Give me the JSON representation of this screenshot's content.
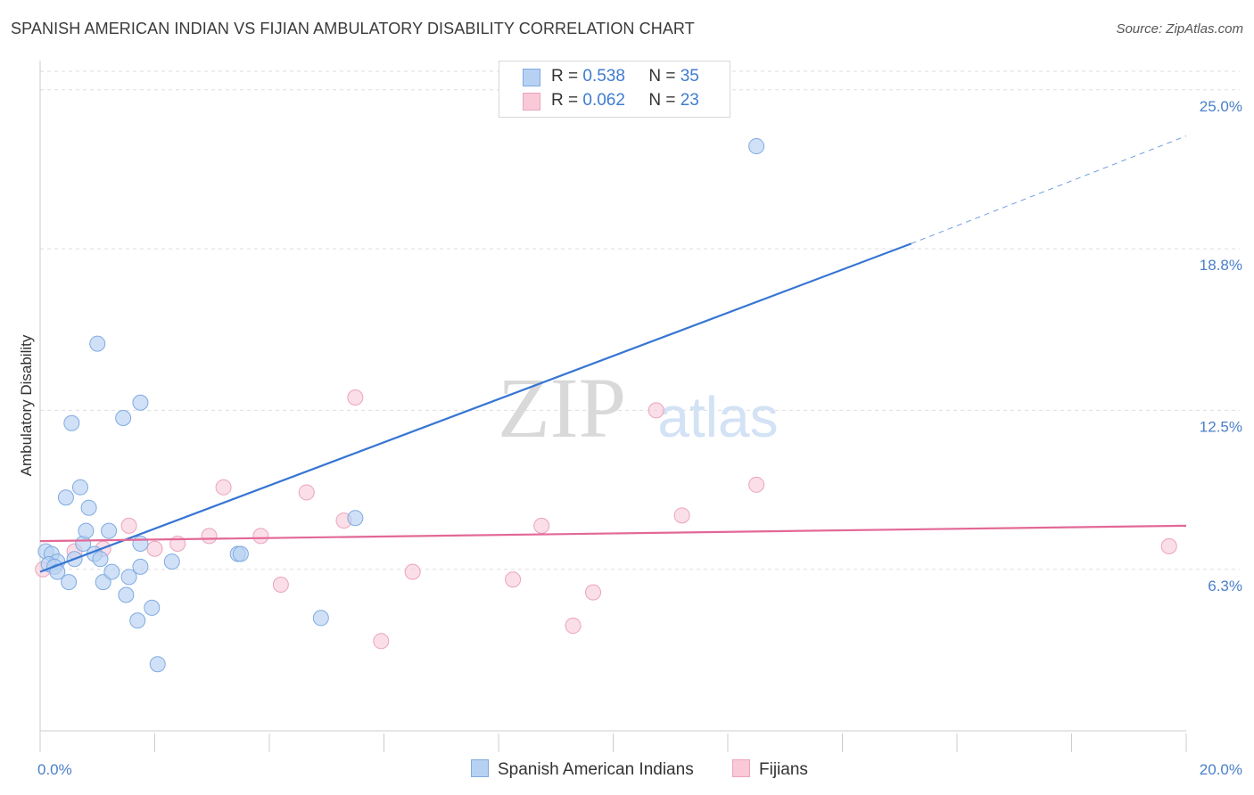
{
  "title": "SPANISH AMERICAN INDIAN VS FIJIAN AMBULATORY DISABILITY CORRELATION CHART",
  "source": "Source: ZipAtlas.com",
  "watermark": {
    "zip": "ZIP",
    "atlas": "atlas"
  },
  "colors": {
    "blue_fill": "#b7d1f3",
    "blue_stroke": "#7faae0",
    "blue_line": "#3575d3",
    "pink_fill": "#f9c9d8",
    "pink_stroke": "#eba3bb",
    "pink_line": "#e36896",
    "value_text": "#3f7bd0",
    "grid": "#dddddd"
  },
  "legend": {
    "rows": [
      {
        "r_label": "R = ",
        "r_value": "0.538",
        "n_label": "N = ",
        "n_value": "35"
      },
      {
        "r_label": "R = ",
        "r_value": "0.062",
        "n_label": "N = ",
        "n_value": "23"
      }
    ]
  },
  "bottom_legend": [
    "Spanish American Indians",
    "Fijians"
  ],
  "chart_data": {
    "type": "scatter",
    "title": "SPANISH AMERICAN INDIAN VS FIJIAN AMBULATORY DISABILITY CORRELATION CHART",
    "xlabel": "",
    "ylabel": "Ambulatory Disability",
    "xlim": [
      0,
      20
    ],
    "ylim": [
      0,
      26
    ],
    "x_tick_labels": [
      {
        "value": 0,
        "label": "0.0%"
      },
      {
        "value": 20,
        "label": "20.0%"
      }
    ],
    "y_ticks": [
      {
        "value": 6.3,
        "label": "6.3%"
      },
      {
        "value": 12.5,
        "label": "12.5%"
      },
      {
        "value": 18.8,
        "label": "18.8%"
      },
      {
        "value": 25.0,
        "label": "25.0%"
      }
    ],
    "grid": true,
    "legend_position": "top-center",
    "series": [
      {
        "name": "Spanish American Indians",
        "color": "#b7d1f3",
        "r": 0.538,
        "n": 35,
        "trend": {
          "x0": 0,
          "y0": 6.2,
          "x1": 15.2,
          "y1": 19.0,
          "dashed_to_x": 20,
          "dashed_to_y": 23.2
        },
        "points": [
          [
            0.1,
            7.0
          ],
          [
            0.2,
            6.9
          ],
          [
            0.3,
            6.6
          ],
          [
            0.15,
            6.5
          ],
          [
            0.25,
            6.4
          ],
          [
            0.3,
            6.2
          ],
          [
            0.5,
            5.8
          ],
          [
            0.6,
            6.7
          ],
          [
            0.7,
            9.5
          ],
          [
            0.75,
            7.3
          ],
          [
            0.8,
            7.8
          ],
          [
            0.85,
            8.7
          ],
          [
            0.95,
            6.9
          ],
          [
            1.05,
            6.7
          ],
          [
            1.1,
            5.8
          ],
          [
            1.2,
            7.8
          ],
          [
            1.25,
            6.2
          ],
          [
            1.5,
            5.3
          ],
          [
            1.55,
            6.0
          ],
          [
            1.75,
            7.3
          ],
          [
            1.75,
            6.4
          ],
          [
            1.95,
            4.8
          ],
          [
            2.3,
            6.6
          ],
          [
            1.7,
            4.3
          ],
          [
            2.05,
            2.6
          ],
          [
            3.45,
            6.9
          ],
          [
            3.5,
            6.9
          ],
          [
            4.9,
            4.4
          ],
          [
            5.5,
            8.3
          ],
          [
            1.0,
            15.1
          ],
          [
            1.75,
            12.8
          ],
          [
            1.45,
            12.2
          ],
          [
            0.55,
            12.0
          ],
          [
            0.45,
            9.1
          ],
          [
            12.5,
            22.8
          ]
        ]
      },
      {
        "name": "Fijians",
        "color": "#f9c9d8",
        "r": 0.062,
        "n": 23,
        "trend": {
          "x0": 0,
          "y0": 7.4,
          "x1": 20,
          "y1": 8.0
        },
        "points": [
          [
            0.05,
            6.3
          ],
          [
            0.6,
            7.0
          ],
          [
            1.1,
            7.1
          ],
          [
            1.55,
            8.0
          ],
          [
            2.0,
            7.1
          ],
          [
            2.4,
            7.3
          ],
          [
            2.95,
            7.6
          ],
          [
            3.2,
            9.5
          ],
          [
            3.85,
            7.6
          ],
          [
            4.2,
            5.7
          ],
          [
            4.65,
            9.3
          ],
          [
            5.3,
            8.2
          ],
          [
            5.5,
            13.0
          ],
          [
            5.95,
            3.5
          ],
          [
            6.5,
            6.2
          ],
          [
            8.25,
            5.9
          ],
          [
            8.75,
            8.0
          ],
          [
            9.3,
            4.1
          ],
          [
            9.65,
            5.4
          ],
          [
            10.75,
            12.5
          ],
          [
            11.2,
            8.4
          ],
          [
            12.5,
            9.6
          ],
          [
            19.7,
            7.2
          ]
        ]
      }
    ]
  }
}
